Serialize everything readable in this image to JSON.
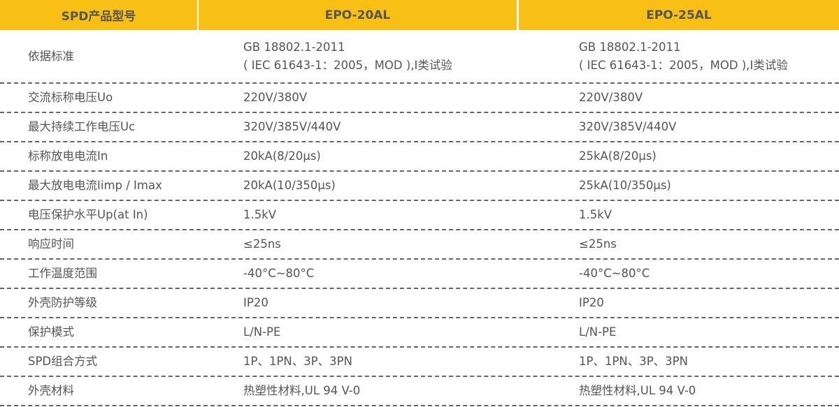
{
  "header": [
    "SPD产品型号",
    "EPO-20AL",
    "EPO-25AL"
  ],
  "colors": {
    "header_bg": "#f8c015",
    "text": "#555555"
  },
  "rows": [
    {
      "label": "依据标准",
      "a": [
        "GB 18802.1-2011",
        "( IEC 61643-1：2005，MOD ),I类试验"
      ],
      "b": [
        "GB 18802.1-2011",
        "( IEC 61643-1：2005，MOD ),I类试验"
      ]
    },
    {
      "label": "交流标称电压Uo",
      "a": [
        "220V/380V"
      ],
      "b": [
        "220V/380V"
      ]
    },
    {
      "label": "最大持续工作电压Uc",
      "a": [
        "320V/385V/440V"
      ],
      "b": [
        "320V/385V/440V"
      ]
    },
    {
      "label": "标称放电电流In",
      "a": [
        "20kA(8/20µs)"
      ],
      "b": [
        "25kA(8/20µs)"
      ]
    },
    {
      "label": "最大放电电流Iimp / Imax",
      "a": [
        "20kA(10/350µs)"
      ],
      "b": [
        "25kA(10/350µs)"
      ]
    },
    {
      "label": "电压保护水平Up(at In)",
      "a": [
        "1.5kV"
      ],
      "b": [
        "1.5kV"
      ]
    },
    {
      "label": "响应时间",
      "a": [
        "≤25ns"
      ],
      "b": [
        "≤25ns"
      ]
    },
    {
      "label": "工作温度范围",
      "a": [
        "-40°C~80°C"
      ],
      "b": [
        "-40°C~80°C"
      ]
    },
    {
      "label": "外壳防护等级",
      "a": [
        "IP20"
      ],
      "b": [
        "IP20"
      ]
    },
    {
      "label": "保护模式",
      "a": [
        "L/N-PE"
      ],
      "b": [
        "L/N-PE"
      ]
    },
    {
      "label": "SPD组合方式",
      "a": [
        "1P、1PN、3P、3PN"
      ],
      "b": [
        "1P、1PN、3P、3PN"
      ]
    },
    {
      "label": "外壳材料",
      "a": [
        "热塑性材料,UL 94 V-0"
      ],
      "b": [
        "热塑性材料,UL 94 V-0"
      ]
    }
  ]
}
